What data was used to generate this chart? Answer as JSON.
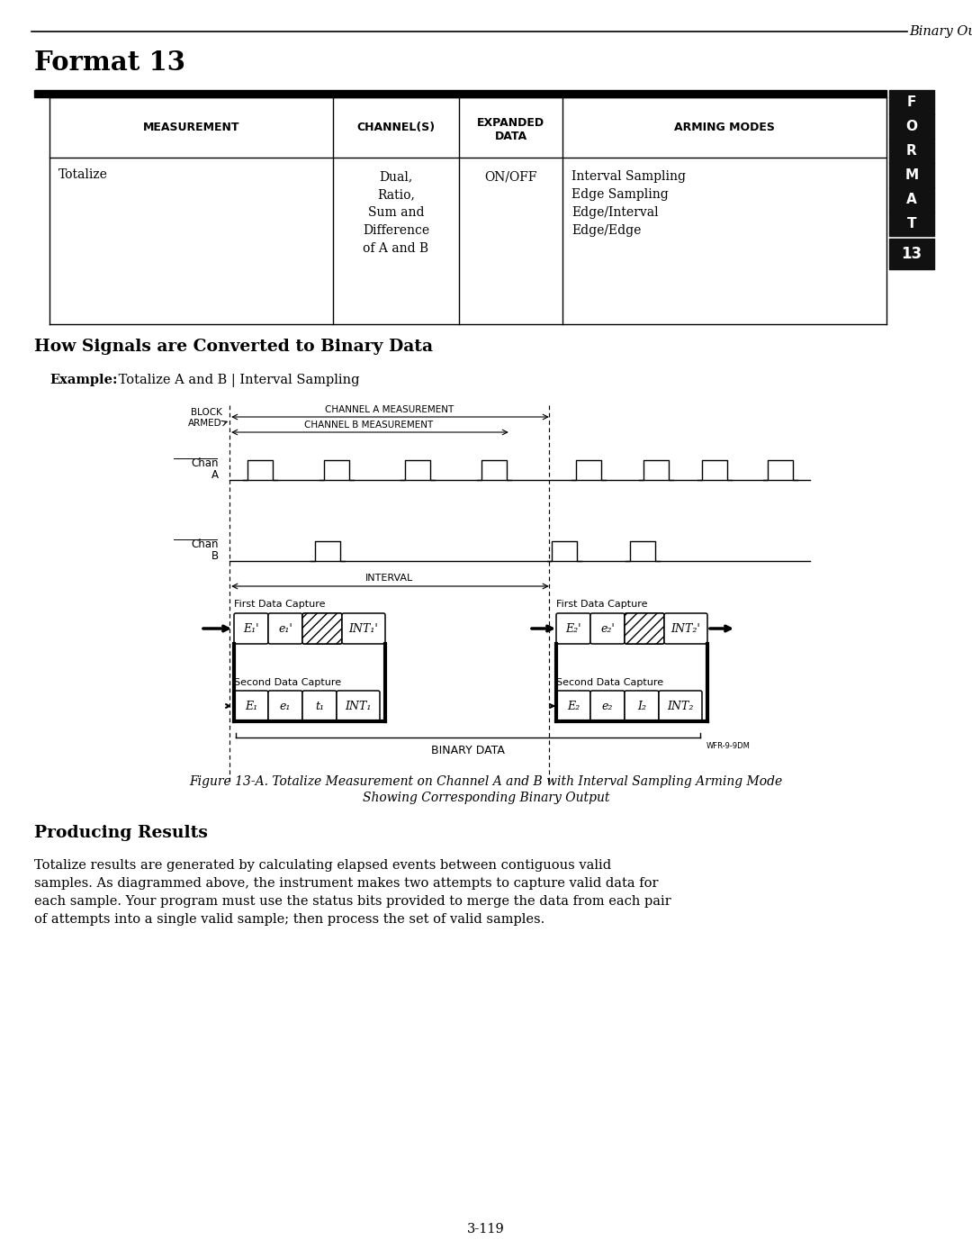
{
  "page_title": "Binary Output",
  "format_title": "Format 13",
  "section1_title": "How Signals are Converted to Binary Data",
  "example_bold": "Example:",
  "example_rest": " Totalize A and B | Interval Sampling",
  "figure_caption_line1": "Figure 13-A. Totalize Measurement on Channel A and B with Interval Sampling Arming Mode",
  "figure_caption_line2": "Showing Corresponding Binary Output",
  "section2_title": "Producing Results",
  "body_text": "Totalize results are generated by calculating elapsed events between contiguous valid\nsamples. As diagrammed above, the instrument makes two attempts to capture valid data for\neach sample. Your program must use the status bits provided to merge the data from each pair\nof attempts into a single valid sample; then process the set of valid samples.",
  "page_number": "3-119",
  "tab_letters": [
    "F",
    "O",
    "R",
    "M",
    "A",
    "T"
  ],
  "tab_number": "13",
  "bg_color": "#ffffff",
  "text_color": "#000000",
  "tab_bg": "#111111",
  "tab_text": "#ffffff",
  "watermark": "WFR-9-9DM"
}
